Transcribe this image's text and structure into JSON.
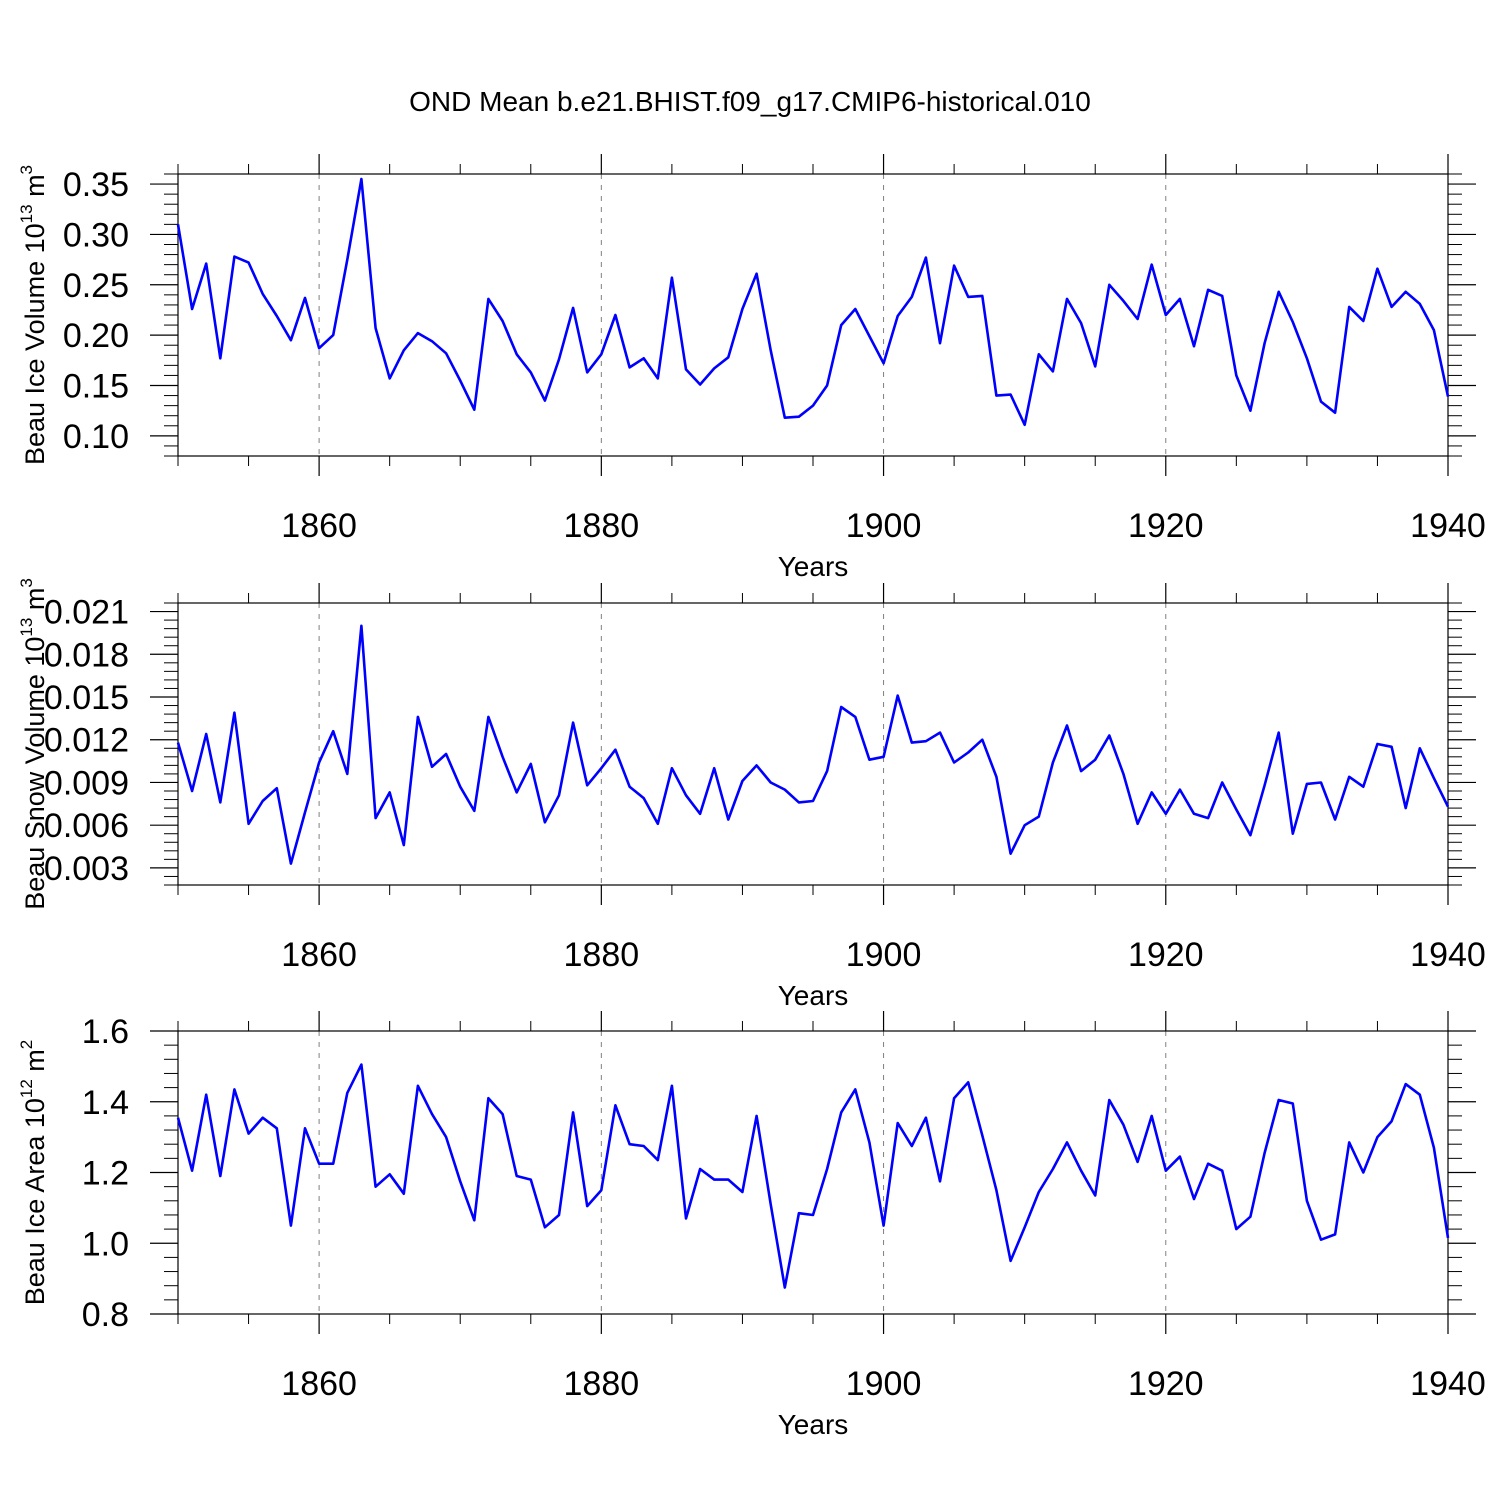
{
  "figure": {
    "title": "OND Mean b.e21.BHIST.f09_g17.CMIP6-historical.010"
  },
  "style": {
    "line_color": "#0000ff",
    "axis_color": "#000000",
    "grid_color": "#808080"
  },
  "chart_data": [
    {
      "type": "line",
      "title": "",
      "xlabel": "Years",
      "ylabel_main": "Beau Ice Volume 10",
      "ylabel_exp": "13",
      "ylabel_unit": " m",
      "ylabel_pow": "3",
      "xlim": [
        1850,
        1940
      ],
      "ylim": [
        0.08,
        0.36
      ],
      "xticks": [
        1860,
        1880,
        1900,
        1920,
        1940
      ],
      "xtick_labels": [
        "1860",
        "1880",
        "1900",
        "1920",
        "1940"
      ],
      "yticks": [
        0.1,
        0.15,
        0.2,
        0.25,
        0.3,
        0.35
      ],
      "ytick_labels": [
        "0.10",
        "0.15",
        "0.20",
        "0.25",
        "0.30",
        "0.35"
      ],
      "grid": "vertical-dashed-at-major-x",
      "x": [
        1850,
        1851,
        1852,
        1853,
        1854,
        1855,
        1856,
        1857,
        1858,
        1859,
        1860,
        1861,
        1862,
        1863,
        1864,
        1865,
        1866,
        1867,
        1868,
        1869,
        1870,
        1871,
        1872,
        1873,
        1874,
        1875,
        1876,
        1877,
        1878,
        1879,
        1880,
        1881,
        1882,
        1883,
        1884,
        1885,
        1886,
        1887,
        1888,
        1889,
        1890,
        1891,
        1892,
        1893,
        1894,
        1895,
        1896,
        1897,
        1898,
        1899,
        1900,
        1901,
        1902,
        1903,
        1904,
        1905,
        1906,
        1907,
        1908,
        1909,
        1910,
        1911,
        1912,
        1913,
        1914,
        1915,
        1916,
        1917,
        1918,
        1919,
        1920,
        1921,
        1922,
        1923,
        1924,
        1925,
        1926,
        1927,
        1928,
        1929,
        1930,
        1931,
        1932,
        1933,
        1934,
        1935,
        1936,
        1937,
        1938,
        1939,
        1940
      ],
      "series": [
        {
          "values": [
            0.31,
            0.226,
            0.271,
            0.177,
            0.278,
            0.272,
            0.241,
            0.219,
            0.195,
            0.237,
            0.187,
            0.2,
            0.275,
            0.355,
            0.207,
            0.157,
            0.185,
            0.202,
            0.194,
            0.182,
            0.155,
            0.126,
            0.236,
            0.214,
            0.181,
            0.163,
            0.135,
            0.176,
            0.227,
            0.163,
            0.181,
            0.22,
            0.168,
            0.177,
            0.157,
            0.257,
            0.166,
            0.151,
            0.167,
            0.178,
            0.226,
            0.261,
            0.185,
            0.118,
            0.119,
            0.13,
            0.15,
            0.21,
            0.226,
            0.199,
            0.172,
            0.219,
            0.238,
            0.277,
            0.192,
            0.269,
            0.238,
            0.239,
            0.14,
            0.141,
            0.111,
            0.181,
            0.164,
            0.236,
            0.212,
            0.169,
            0.25,
            0.234,
            0.216,
            0.27,
            0.22,
            0.236,
            0.189,
            0.245,
            0.239,
            0.16,
            0.125,
            0.192,
            0.243,
            0.213,
            0.177,
            0.134,
            0.123,
            0.228,
            0.214,
            0.266,
            0.228,
            0.243,
            0.231,
            0.205,
            0.139
          ]
        }
      ]
    },
    {
      "type": "line",
      "title": "",
      "xlabel": "Years",
      "ylabel_main": "Beau Snow Volume 10",
      "ylabel_exp": "13",
      "ylabel_unit": " m",
      "ylabel_pow": "3",
      "xlim": [
        1850,
        1940
      ],
      "ylim": [
        0.0018,
        0.0216
      ],
      "xticks": [
        1860,
        1880,
        1900,
        1920,
        1940
      ],
      "xtick_labels": [
        "1860",
        "1880",
        "1900",
        "1920",
        "1940"
      ],
      "yticks": [
        0.003,
        0.006,
        0.009,
        0.012,
        0.015,
        0.018,
        0.021
      ],
      "ytick_labels": [
        "0.003",
        "0.006",
        "0.009",
        "0.012",
        "0.015",
        "0.018",
        "0.021"
      ],
      "grid": "vertical-dashed-at-major-x",
      "x": [
        1850,
        1851,
        1852,
        1853,
        1854,
        1855,
        1856,
        1857,
        1858,
        1859,
        1860,
        1861,
        1862,
        1863,
        1864,
        1865,
        1866,
        1867,
        1868,
        1869,
        1870,
        1871,
        1872,
        1873,
        1874,
        1875,
        1876,
        1877,
        1878,
        1879,
        1880,
        1881,
        1882,
        1883,
        1884,
        1885,
        1886,
        1887,
        1888,
        1889,
        1890,
        1891,
        1892,
        1893,
        1894,
        1895,
        1896,
        1897,
        1898,
        1899,
        1900,
        1901,
        1902,
        1903,
        1904,
        1905,
        1906,
        1907,
        1908,
        1909,
        1910,
        1911,
        1912,
        1913,
        1914,
        1915,
        1916,
        1917,
        1918,
        1919,
        1920,
        1921,
        1922,
        1923,
        1924,
        1925,
        1926,
        1927,
        1928,
        1929,
        1930,
        1931,
        1932,
        1933,
        1934,
        1935,
        1936,
        1937,
        1938,
        1939,
        1940
      ],
      "series": [
        {
          "values": [
            0.0118,
            0.0084,
            0.0124,
            0.0076,
            0.0139,
            0.0061,
            0.0077,
            0.0086,
            0.0033,
            0.0069,
            0.0104,
            0.0126,
            0.0096,
            0.02,
            0.0065,
            0.0083,
            0.0046,
            0.0136,
            0.0101,
            0.011,
            0.0087,
            0.007,
            0.0136,
            0.0108,
            0.0083,
            0.0103,
            0.0062,
            0.0081,
            0.0132,
            0.0088,
            0.01,
            0.0113,
            0.0087,
            0.0079,
            0.0061,
            0.01,
            0.0081,
            0.0068,
            0.01,
            0.0064,
            0.0091,
            0.0102,
            0.009,
            0.0085,
            0.0076,
            0.0077,
            0.0098,
            0.0143,
            0.0136,
            0.0106,
            0.0108,
            0.0151,
            0.0118,
            0.0119,
            0.0125,
            0.0104,
            0.0111,
            0.012,
            0.0094,
            0.004,
            0.006,
            0.0066,
            0.0104,
            0.013,
            0.0098,
            0.0106,
            0.0123,
            0.0096,
            0.0061,
            0.0083,
            0.0068,
            0.0085,
            0.0068,
            0.0065,
            0.009,
            0.0071,
            0.0053,
            0.0088,
            0.0125,
            0.0054,
            0.0089,
            0.009,
            0.0064,
            0.0094,
            0.0087,
            0.0117,
            0.0115,
            0.0072,
            0.0114,
            0.0093,
            0.0073
          ]
        }
      ]
    },
    {
      "type": "line",
      "title": "",
      "xlabel": "Years",
      "ylabel_main": "Beau Ice Area 10",
      "ylabel_exp": "12",
      "ylabel_unit": " m",
      "ylabel_pow": "2",
      "xlim": [
        1850,
        1940
      ],
      "ylim": [
        0.8,
        1.6
      ],
      "xticks": [
        1860,
        1880,
        1900,
        1920,
        1940
      ],
      "xtick_labels": [
        "1860",
        "1880",
        "1900",
        "1920",
        "1940"
      ],
      "yticks": [
        0.8,
        1.0,
        1.2,
        1.4,
        1.6
      ],
      "ytick_labels": [
        "0.8",
        "1.0",
        "1.2",
        "1.4",
        "1.6"
      ],
      "grid": "vertical-dashed-at-major-x",
      "x": [
        1850,
        1851,
        1852,
        1853,
        1854,
        1855,
        1856,
        1857,
        1858,
        1859,
        1860,
        1861,
        1862,
        1863,
        1864,
        1865,
        1866,
        1867,
        1868,
        1869,
        1870,
        1871,
        1872,
        1873,
        1874,
        1875,
        1876,
        1877,
        1878,
        1879,
        1880,
        1881,
        1882,
        1883,
        1884,
        1885,
        1886,
        1887,
        1888,
        1889,
        1890,
        1891,
        1892,
        1893,
        1894,
        1895,
        1896,
        1897,
        1898,
        1899,
        1900,
        1901,
        1902,
        1903,
        1904,
        1905,
        1906,
        1907,
        1908,
        1909,
        1910,
        1911,
        1912,
        1913,
        1914,
        1915,
        1916,
        1917,
        1918,
        1919,
        1920,
        1921,
        1922,
        1923,
        1924,
        1925,
        1926,
        1927,
        1928,
        1929,
        1930,
        1931,
        1932,
        1933,
        1934,
        1935,
        1936,
        1937,
        1938,
        1939,
        1940
      ],
      "series": [
        {
          "values": [
            1.355,
            1.205,
            1.42,
            1.19,
            1.435,
            1.31,
            1.355,
            1.325,
            1.05,
            1.325,
            1.225,
            1.225,
            1.425,
            1.505,
            1.16,
            1.195,
            1.14,
            1.445,
            1.365,
            1.3,
            1.175,
            1.065,
            1.41,
            1.365,
            1.19,
            1.18,
            1.045,
            1.08,
            1.37,
            1.105,
            1.15,
            1.39,
            1.28,
            1.275,
            1.235,
            1.445,
            1.07,
            1.21,
            1.18,
            1.18,
            1.145,
            1.36,
            1.11,
            0.875,
            1.085,
            1.08,
            1.21,
            1.37,
            1.435,
            1.285,
            1.05,
            1.34,
            1.275,
            1.355,
            1.175,
            1.41,
            1.455,
            1.305,
            1.15,
            0.95,
            1.045,
            1.145,
            1.21,
            1.285,
            1.205,
            1.135,
            1.405,
            1.335,
            1.23,
            1.36,
            1.205,
            1.245,
            1.125,
            1.225,
            1.205,
            1.04,
            1.075,
            1.255,
            1.405,
            1.395,
            1.12,
            1.01,
            1.025,
            1.285,
            1.2,
            1.3,
            1.345,
            1.45,
            1.42,
            1.27,
            1.015
          ]
        }
      ]
    }
  ]
}
